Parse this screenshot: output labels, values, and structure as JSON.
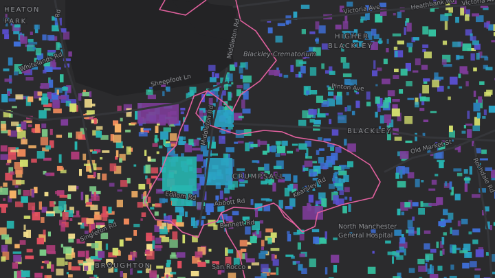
{
  "map": {
    "boundary_color": "#e3619f",
    "colors": {
      "background": "#2b2b2d",
      "park": "#232325",
      "road": "#35363a",
      "label": "#8e9094"
    },
    "palette": [
      "#2c7fb8",
      "#2aa3c4",
      "#27b6b0",
      "#35c4a2",
      "#7fd08a",
      "#d4e06e",
      "#f6e08d",
      "#f7b267",
      "#f08a5b",
      "#e04f5f",
      "#b13c7a",
      "#7d3c98",
      "#5a4fcf",
      "#3f6fd8"
    ],
    "labels": {
      "heaton_park": "HEATON\nPARK",
      "higher_blackley": "HIGHER\nBLACKLEY",
      "blackley": "BLACKLEY",
      "crumpsall": "CRUMPSALL",
      "broughton": "BROUGHTON",
      "victoria_ave_1": "Victoria Ave",
      "victoria_ave_2": "Victoria Ave",
      "heathbank_rd": "Heathbank Rd",
      "middleton_rd_1": "Middleton Rd",
      "middleton_rd_2": "Middleton Rd",
      "sheepfoot_ln": "Sheepfoot Ln",
      "whitelands_rd": "Whitelands Rd",
      "rd_fragment": "Rd",
      "blackley_crematorium": "Blackley Crematorium",
      "pinton_ave": "Pinton Ave",
      "old_market_st": "Old Market St",
      "rochdale_rd": "Rochdale Rd",
      "edilom_rd": "Edilom Rd",
      "abbott_rd": "Abbott Rd",
      "bennett_rd": "Bennett Rd",
      "north_manchester": "North Manchester",
      "general_hospital": "General Hospital",
      "san_rocco": "San Rocco",
      "kearsley_rd": "Kearsley Rd",
      "singleton_rd": "Singleton Rd"
    }
  }
}
